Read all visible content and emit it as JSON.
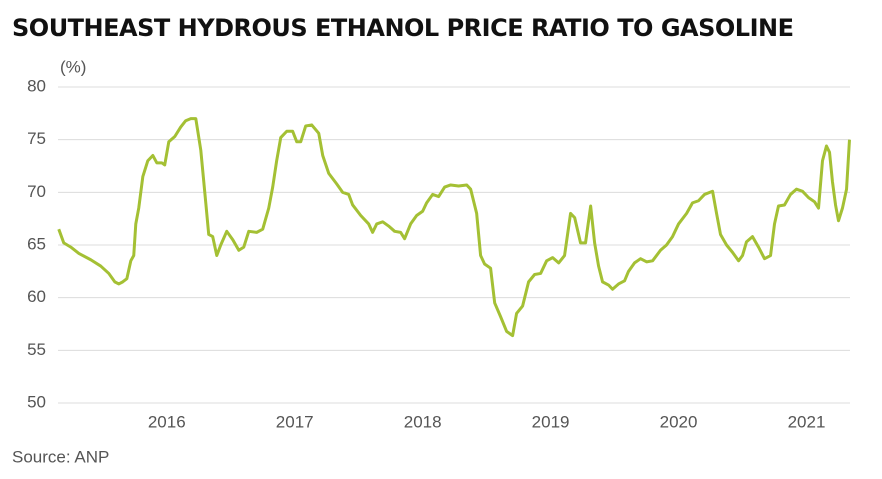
{
  "chart_data": {
    "type": "line",
    "title": "SOUTHEAST HYDROUS ETHANOL PRICE RATIO TO GASOLINE",
    "y_label": "(%)",
    "source": "Source: ANP",
    "xlim": [
      2015.15,
      2021.34
    ],
    "xticks": [
      2016,
      2017,
      2018,
      2019,
      2020,
      2021
    ],
    "ylim": [
      50,
      80
    ],
    "yticks": [
      50,
      55,
      60,
      65,
      70,
      75,
      80
    ],
    "grid": true,
    "x": [
      2015.156,
      2015.195,
      2015.25,
      2015.313,
      2015.406,
      2015.484,
      2015.547,
      2015.594,
      2015.625,
      2015.656,
      2015.688,
      2015.719,
      2015.742,
      2015.758,
      2015.781,
      2015.813,
      2015.852,
      2015.891,
      2015.922,
      2015.961,
      2015.984,
      2016.016,
      2016.063,
      2016.109,
      2016.148,
      2016.188,
      2016.227,
      2016.266,
      2016.305,
      2016.328,
      2016.359,
      2016.391,
      2016.422,
      2016.469,
      2016.516,
      2016.563,
      2016.602,
      2016.641,
      2016.703,
      2016.75,
      2016.797,
      2016.828,
      2016.859,
      2016.891,
      2016.938,
      2016.984,
      2017.016,
      2017.047,
      2017.086,
      2017.133,
      2017.188,
      2017.219,
      2017.266,
      2017.328,
      2017.375,
      2017.422,
      2017.453,
      2017.516,
      2017.578,
      2017.609,
      2017.641,
      2017.688,
      2017.734,
      2017.781,
      2017.828,
      2017.859,
      2017.906,
      2017.953,
      2018.0,
      2018.031,
      2018.078,
      2018.125,
      2018.172,
      2018.219,
      2018.281,
      2018.344,
      2018.375,
      2018.422,
      2018.453,
      2018.484,
      2018.531,
      2018.563,
      2018.609,
      2018.656,
      2018.703,
      2018.734,
      2018.781,
      2018.828,
      2018.875,
      2018.922,
      2018.969,
      2019.016,
      2019.063,
      2019.109,
      2019.156,
      2019.188,
      2019.234,
      2019.273,
      2019.313,
      2019.344,
      2019.375,
      2019.406,
      2019.453,
      2019.484,
      2019.531,
      2019.578,
      2019.609,
      2019.656,
      2019.703,
      2019.75,
      2019.797,
      2019.859,
      2019.906,
      2019.953,
      2020.0,
      2020.063,
      2020.109,
      2020.156,
      2020.203,
      2020.266,
      2020.297,
      2020.328,
      2020.375,
      2020.422,
      2020.469,
      2020.5,
      2020.531,
      2020.578,
      2020.625,
      2020.672,
      2020.719,
      2020.75,
      2020.781,
      2020.828,
      2020.875,
      2020.922,
      2020.969,
      2021.016,
      2021.063,
      2021.094,
      2021.125,
      2021.156,
      2021.18,
      2021.203,
      2021.227,
      2021.25,
      2021.281,
      2021.313,
      2021.336
    ],
    "series": [
      {
        "color": "#a4c034",
        "values": [
          66.5,
          65.2,
          64.8,
          64.2,
          63.6,
          63.0,
          62.3,
          61.5,
          61.3,
          61.5,
          61.8,
          63.5,
          64,
          67,
          68.5,
          71.5,
          73,
          73.5,
          72.8,
          72.8,
          72.6,
          74.8,
          75.3,
          76.2,
          76.8,
          77.0,
          77.0,
          74,
          69,
          66,
          65.8,
          64,
          65,
          66.3,
          65.5,
          64.5,
          64.8,
          66.3,
          66.2,
          66.5,
          68.5,
          70.5,
          73,
          75.2,
          75.8,
          75.8,
          74.8,
          74.8,
          76.3,
          76.4,
          75.6,
          73.5,
          71.8,
          70.8,
          70,
          69.8,
          68.8,
          67.8,
          67,
          66.2,
          67.0,
          67.2,
          66.8,
          66.3,
          66.2,
          65.6,
          67,
          67.8,
          68.2,
          69,
          69.8,
          69.6,
          70.5,
          70.7,
          70.6,
          70.7,
          70.3,
          68,
          64,
          63.2,
          62.8,
          59.5,
          58.2,
          56.8,
          56.4,
          58.5,
          59.2,
          61.5,
          62.2,
          62.3,
          63.5,
          63.8,
          63.3,
          64,
          68,
          67.6,
          65.2,
          65.2,
          68.7,
          65.2,
          63,
          61.5,
          61.2,
          60.8,
          61.3,
          61.6,
          62.5,
          63.3,
          63.7,
          63.4,
          63.5,
          64.5,
          65,
          65.8,
          67,
          68,
          69,
          69.2,
          69.8,
          70.1,
          68,
          66,
          65,
          64.3,
          63.5,
          64,
          65.3,
          65.8,
          64.8,
          63.7,
          64,
          67,
          68.7,
          68.8,
          69.8,
          70.3,
          70.1,
          69.5,
          69.1,
          68.5,
          73,
          74.4,
          73.8,
          71,
          68.8,
          67.3,
          68.5,
          70.3,
          75
        ]
      }
    ]
  }
}
